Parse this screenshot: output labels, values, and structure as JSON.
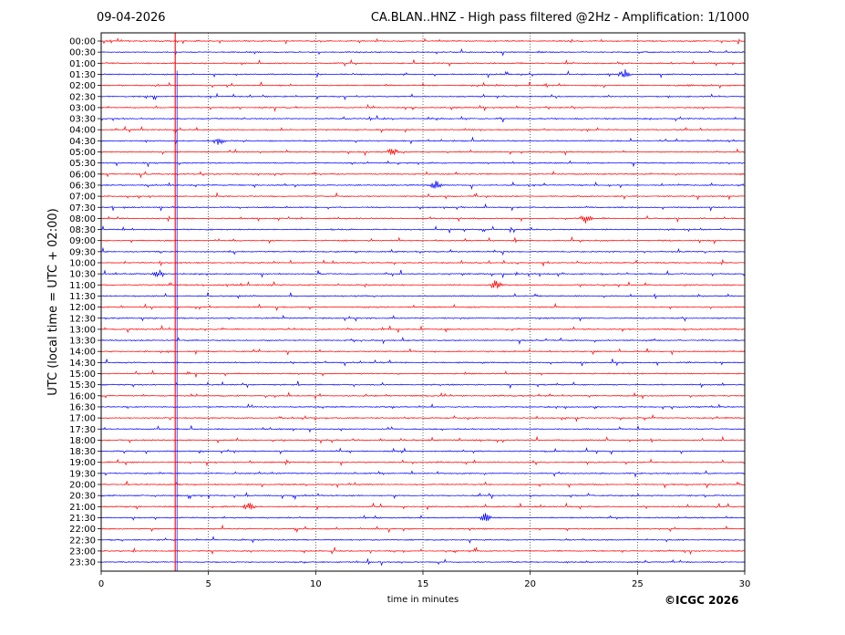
{
  "header": {
    "date": "09-04-2026",
    "title": "CA.BLAN..HNZ - High pass filtered @2Hz - Amplification: 1/1000"
  },
  "footer": {
    "copyright": "©ICGC 2026"
  },
  "chart_data": {
    "type": "line",
    "title": "CA.BLAN..HNZ - High pass filtered @2Hz - Amplification: 1/1000",
    "xlabel": "time in minutes",
    "ylabel": "UTC (local time = UTC + 02:00)",
    "xlim": [
      0,
      30
    ],
    "x_ticks": [
      0,
      5,
      10,
      15,
      20,
      25,
      30
    ],
    "y_ticks": [
      "00:00",
      "00:30",
      "01:00",
      "01:30",
      "02:00",
      "02:30",
      "03:00",
      "03:30",
      "04:00",
      "04:30",
      "05:00",
      "05:30",
      "06:00",
      "06:30",
      "07:00",
      "07:30",
      "08:00",
      "08:30",
      "09:00",
      "09:30",
      "10:00",
      "10:30",
      "11:00",
      "11:30",
      "12:00",
      "12:30",
      "13:00",
      "13:30",
      "14:00",
      "14:30",
      "15:00",
      "15:30",
      "16:00",
      "16:30",
      "17:00",
      "17:30",
      "18:00",
      "18:30",
      "19:00",
      "19:30",
      "20:00",
      "20:30",
      "21:00",
      "21:30",
      "22:00",
      "22:30",
      "23:00",
      "23:30"
    ],
    "grid": "vertical dotted lines at 5-minute intervals",
    "trace_colors": [
      "#ff0000",
      "#0000ff"
    ],
    "events": [
      {
        "row": "01:30",
        "minute": 24.4
      },
      {
        "row": "04:30",
        "minute": 5.5
      },
      {
        "row": "05:00",
        "minute": 13.6
      },
      {
        "row": "06:30",
        "minute": 15.6
      },
      {
        "row": "08:00",
        "minute": 22.6
      },
      {
        "row": "10:30",
        "minute": 2.7
      },
      {
        "row": "11:00",
        "minute": 18.4
      },
      {
        "row": "21:00",
        "minute": 6.9
      },
      {
        "row": "21:30",
        "minute": 17.9
      }
    ]
  }
}
